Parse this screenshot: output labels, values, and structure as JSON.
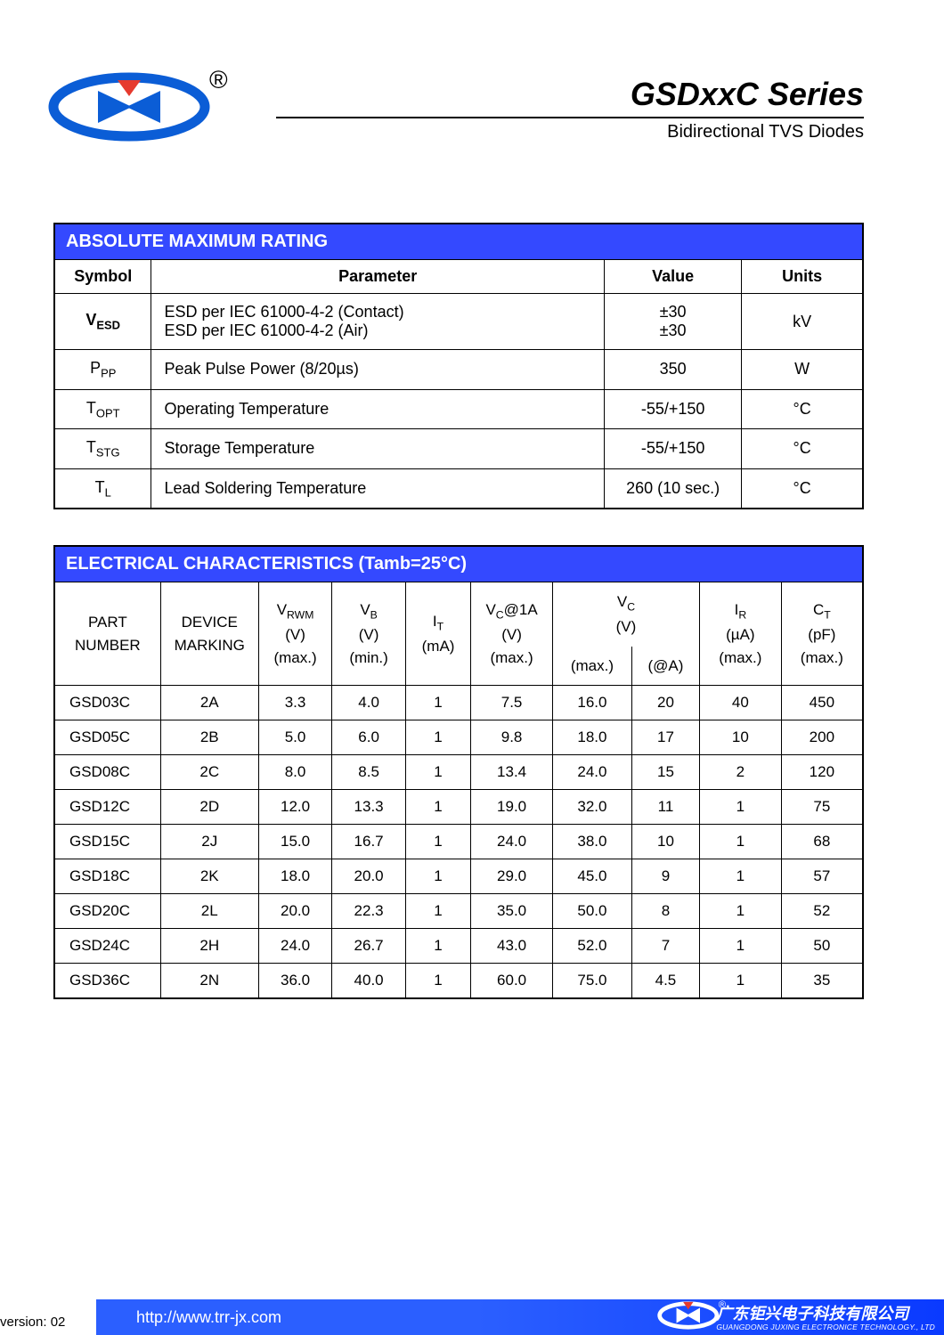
{
  "header": {
    "title_main": "GSDxxC  Series",
    "title_sub": "Bidirectional  TVS  Diodes",
    "registered_mark": "®"
  },
  "colors": {
    "table_header_bg": "#3449ff",
    "table_header_fg": "#ffffff",
    "border": "#000000",
    "logo_blue": "#0b5dd6",
    "logo_red": "#e63a2e",
    "footer_bg_start": "#2b5fff",
    "footer_bg_end": "#0a3aff"
  },
  "amr": {
    "title": "ABSOLUTE MAXIMUM RATING",
    "cols": {
      "symbol": "Symbol",
      "parameter": "Parameter",
      "value": "Value",
      "units": "Units"
    },
    "rows": [
      {
        "symbol_html": "V<span class='sub'>ESD</span>",
        "symbol_bold": true,
        "parameter": "ESD per IEC 61000-4-2 (Contact)\nESD per IEC 61000-4-2 (Air)",
        "value": "±30\n±30",
        "units": "kV"
      },
      {
        "symbol_html": "P<span class='sub'>PP</span>",
        "parameter": "Peak Pulse Power (8/20µs)",
        "value": "350",
        "units": "W"
      },
      {
        "symbol_html": "T<span class='sub'>OPT</span>",
        "parameter": "Operating Temperature",
        "value": "-55/+150",
        "units": "°C"
      },
      {
        "symbol_html": "T<span class='sub'>STG</span>",
        "parameter": "Storage Temperature",
        "value": "-55/+150",
        "units": "°C"
      },
      {
        "symbol_html": "T<span class='sub'>L</span>",
        "parameter": "Lead Soldering Temperature",
        "value": "260 (10 sec.)",
        "units": "°C"
      }
    ]
  },
  "ec": {
    "title": "ELECTRICAL CHARACTERISTICS (Tamb=25°C)",
    "cols": {
      "part_number": "PART\nNUMBER",
      "device_marking": "DEVICE\nMARKING",
      "vrwm": "V<span class='sub'>RWM</span><br>(V)<br>(max.)",
      "vb": "V<span class='sub'>B</span><br>(V)<br>(min.)",
      "it": "I<span class='sub'>T</span><br>(mA)",
      "vc1a": "V<span class='sub'>C</span>@1A<br>(V)<br>(max.)",
      "vc": "V<span class='sub'>C</span><br>(V)",
      "vc_max": "(max.)",
      "vc_at_a": "(@A)",
      "ir": "I<span class='sub'>R</span><br>(µA)<br>(max.)",
      "ct": "C<span class='sub'>T</span><br>(pF)<br>(max.)"
    },
    "rows": [
      [
        "GSD03C",
        "2A",
        "3.3",
        "4.0",
        "1",
        "7.5",
        "16.0",
        "20",
        "40",
        "450"
      ],
      [
        "GSD05C",
        "2B",
        "5.0",
        "6.0",
        "1",
        "9.8",
        "18.0",
        "17",
        "10",
        "200"
      ],
      [
        "GSD08C",
        "2C",
        "8.0",
        "8.5",
        "1",
        "13.4",
        "24.0",
        "15",
        "2",
        "120"
      ],
      [
        "GSD12C",
        "2D",
        "12.0",
        "13.3",
        "1",
        "19.0",
        "32.0",
        "11",
        "1",
        "75"
      ],
      [
        "GSD15C",
        "2J",
        "15.0",
        "16.7",
        "1",
        "24.0",
        "38.0",
        "10",
        "1",
        "68"
      ],
      [
        "GSD18C",
        "2K",
        "18.0",
        "20.0",
        "1",
        "29.0",
        "45.0",
        "9",
        "1",
        "57"
      ],
      [
        "GSD20C",
        "2L",
        "20.0",
        "22.3",
        "1",
        "35.0",
        "50.0",
        "8",
        "1",
        "52"
      ],
      [
        "GSD24C",
        "2H",
        "24.0",
        "26.7",
        "1",
        "43.0",
        "52.0",
        "7",
        "1",
        "50"
      ],
      [
        "GSD36C",
        "2N",
        "36.0",
        "40.0",
        "1",
        "60.0",
        "75.0",
        "4.5",
        "1",
        "35"
      ]
    ]
  },
  "footer": {
    "url": "http://www.trr-jx.com",
    "company_cn": "广东钜兴电子科技有限公司",
    "company_en": "GUANGDONG JUXING ELECTRONICE TECHNOLOGY., LTD",
    "version": "version: 02",
    "registered_mark": "®"
  }
}
